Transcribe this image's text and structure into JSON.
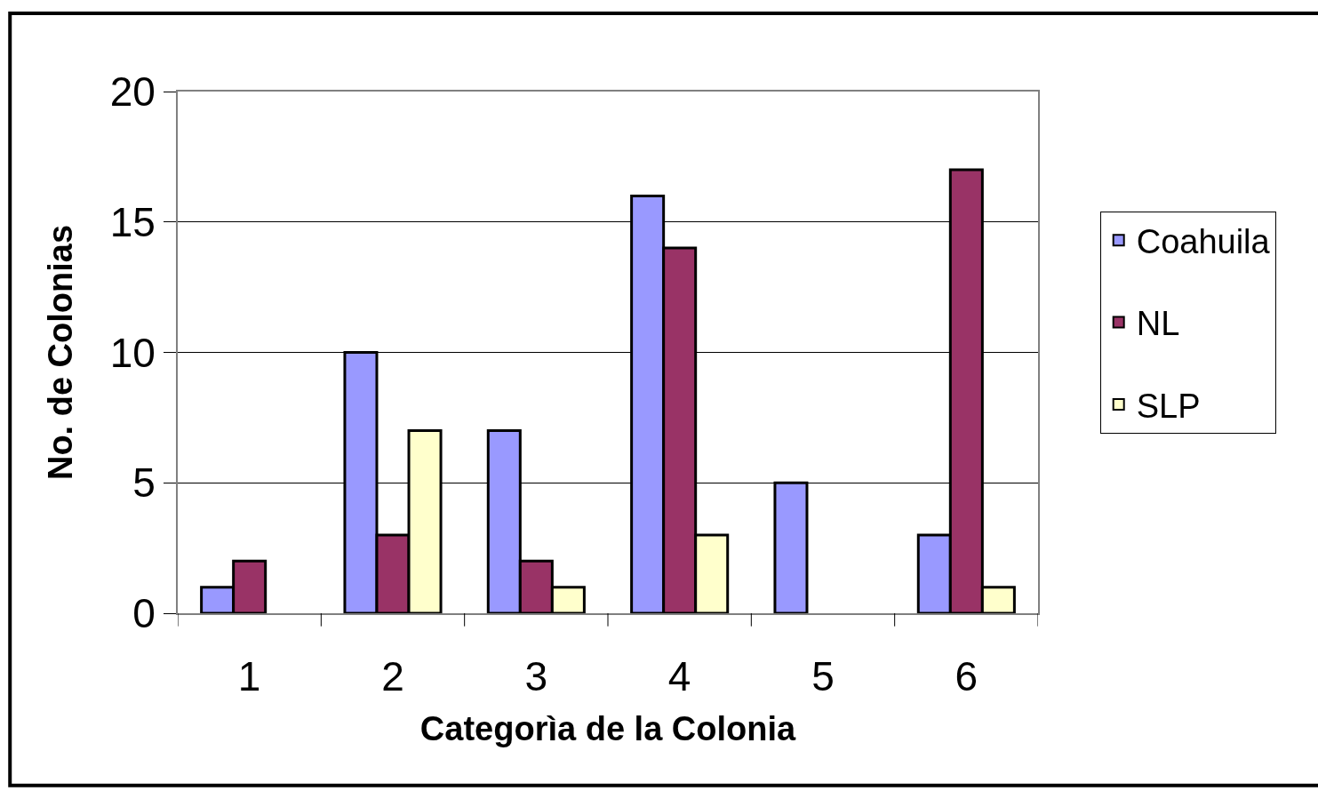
{
  "chart_data": {
    "type": "bar",
    "xlabel": "Categorìa de la Colonia",
    "ylabel": "No. de Colonias",
    "categories": [
      "1",
      "2",
      "3",
      "4",
      "5",
      "6"
    ],
    "series": [
      {
        "name": "Coahuila",
        "color": "#9999ff",
        "values": [
          1,
          10,
          7,
          16,
          5,
          3
        ]
      },
      {
        "name": "NL",
        "color": "#993366",
        "values": [
          2,
          3,
          2,
          14,
          null,
          17
        ]
      },
      {
        "name": "SLP",
        "color": "#ffffcc",
        "values": [
          null,
          7,
          1,
          3,
          null,
          1
        ]
      }
    ],
    "ylim": [
      0,
      20
    ],
    "yticks": [
      0,
      5,
      10,
      15,
      20
    ],
    "grid": "y",
    "legend": "right"
  }
}
